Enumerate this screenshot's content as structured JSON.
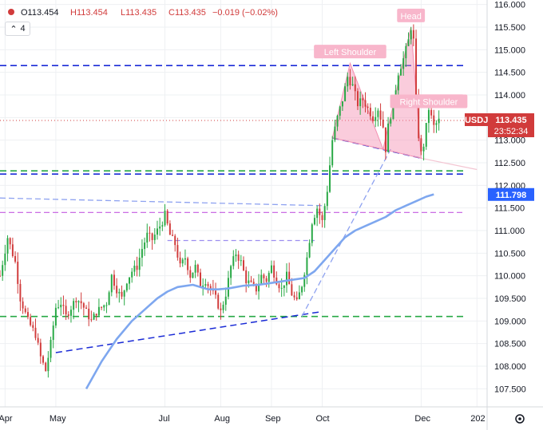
{
  "chart_data": {
    "type": "candlestick",
    "symbol": "USDJPY",
    "header": {
      "open": "O113.454",
      "high": "H113.454",
      "low": "L113.435",
      "close": "C113.435",
      "change": "−0.019 (−0.02%)"
    },
    "interval_label": "4",
    "last_price": "113.435",
    "countdown": "23:52:34",
    "ma_value": "111.798",
    "ylim": [
      107.1,
      116.1
    ],
    "y_ticks": [
      "116.000",
      "115.500",
      "115.000",
      "114.500",
      "114.000",
      "113.500",
      "113.000",
      "112.500",
      "112.000",
      "111.500",
      "111.000",
      "110.500",
      "110.000",
      "109.500",
      "109.000",
      "108.500",
      "108.000",
      "107.500"
    ],
    "x_ticks": [
      {
        "label": "Apr",
        "t": 2
      },
      {
        "label": "May",
        "t": 22
      },
      {
        "label": "Jul",
        "t": 65
      },
      {
        "label": "Aug",
        "t": 87
      },
      {
        "label": "Sep",
        "t": 107
      },
      {
        "label": "Oct",
        "t": 127
      },
      {
        "label": "Dec",
        "t": 166
      },
      {
        "label": "202",
        "t": 188
      }
    ],
    "waypoints": [
      [
        0,
        110.0
      ],
      [
        3,
        110.85
      ],
      [
        6,
        110.3
      ],
      [
        8,
        109.5
      ],
      [
        11,
        109.0
      ],
      [
        14,
        108.7
      ],
      [
        16,
        108.2
      ],
      [
        18,
        107.9
      ],
      [
        20,
        108.5
      ],
      [
        22,
        109.3
      ],
      [
        24,
        109.4
      ],
      [
        26,
        109.1
      ],
      [
        28,
        109.3
      ],
      [
        30,
        109.5
      ],
      [
        32,
        109.4
      ],
      [
        34,
        109.2
      ],
      [
        36,
        109.0
      ],
      [
        38,
        109.2
      ],
      [
        40,
        109.3
      ],
      [
        42,
        109.4
      ],
      [
        44,
        110.0
      ],
      [
        46,
        109.7
      ],
      [
        48,
        109.5
      ],
      [
        50,
        109.9
      ],
      [
        52,
        110.1
      ],
      [
        54,
        110.2
      ],
      [
        56,
        110.6
      ],
      [
        58,
        110.9
      ],
      [
        60,
        110.8
      ],
      [
        62,
        111.0
      ],
      [
        64,
        111.2
      ],
      [
        65,
        111.35
      ],
      [
        67,
        110.9
      ],
      [
        69,
        110.7
      ],
      [
        71,
        110.2
      ],
      [
        73,
        110.4
      ],
      [
        75,
        110.0
      ],
      [
        77,
        110.2
      ],
      [
        79,
        109.8
      ],
      [
        81,
        109.9
      ],
      [
        83,
        109.7
      ],
      [
        85,
        109.5
      ],
      [
        87,
        109.2
      ],
      [
        89,
        109.6
      ],
      [
        91,
        110.2
      ],
      [
        93,
        110.5
      ],
      [
        95,
        110.3
      ],
      [
        97,
        109.9
      ],
      [
        99,
        109.8
      ],
      [
        101,
        109.7
      ],
      [
        103,
        110.0
      ],
      [
        105,
        109.9
      ],
      [
        107,
        110.2
      ],
      [
        109,
        109.9
      ],
      [
        111,
        109.7
      ],
      [
        113,
        110.0
      ],
      [
        115,
        109.6
      ],
      [
        117,
        109.4
      ],
      [
        119,
        109.8
      ],
      [
        121,
        110.4
      ],
      [
        123,
        111.2
      ],
      [
        125,
        111.5
      ],
      [
        127,
        111.2
      ],
      [
        129,
        111.9
      ],
      [
        131,
        113.0
      ],
      [
        133,
        113.5
      ],
      [
        135,
        113.9
      ],
      [
        137,
        114.4
      ],
      [
        139,
        114.2
      ],
      [
        141,
        113.8
      ],
      [
        143,
        113.9
      ],
      [
        145,
        113.7
      ],
      [
        147,
        113.5
      ],
      [
        149,
        113.7
      ],
      [
        151,
        113.3
      ],
      [
        152,
        112.8
      ],
      [
        153,
        113.3
      ],
      [
        155,
        113.8
      ],
      [
        157,
        114.5
      ],
      [
        159,
        114.8
      ],
      [
        161,
        115.2
      ],
      [
        162,
        115.5
      ],
      [
        163,
        115.2
      ],
      [
        164,
        113.9
      ],
      [
        165,
        113.1
      ],
      [
        166,
        112.7
      ],
      [
        167,
        112.9
      ],
      [
        168,
        113.3
      ],
      [
        169,
        113.7
      ],
      [
        171,
        113.3
      ],
      [
        173,
        113.43
      ]
    ],
    "ma_waypoints": [
      [
        34,
        107.5
      ],
      [
        40,
        108.1
      ],
      [
        46,
        108.6
      ],
      [
        52,
        109.0
      ],
      [
        58,
        109.3
      ],
      [
        62,
        109.5
      ],
      [
        66,
        109.65
      ],
      [
        70,
        109.75
      ],
      [
        76,
        109.8
      ],
      [
        82,
        109.7
      ],
      [
        86,
        109.7
      ],
      [
        90,
        109.72
      ],
      [
        96,
        109.78
      ],
      [
        102,
        109.8
      ],
      [
        108,
        109.85
      ],
      [
        114,
        109.9
      ],
      [
        120,
        109.95
      ],
      [
        124,
        110.1
      ],
      [
        128,
        110.35
      ],
      [
        132,
        110.6
      ],
      [
        136,
        110.85
      ],
      [
        140,
        111.0
      ],
      [
        144,
        111.1
      ],
      [
        148,
        111.2
      ],
      [
        152,
        111.3
      ],
      [
        156,
        111.45
      ],
      [
        160,
        111.55
      ],
      [
        164,
        111.65
      ],
      [
        168,
        111.75
      ],
      [
        171,
        111.8
      ]
    ],
    "levels": {
      "blue_dashed": [
        114.65,
        112.25
      ],
      "green_dashed": [
        112.32,
        109.1
      ],
      "purple_dashed": [
        111.4
      ],
      "red_dotted": 113.435,
      "pink_line": 114.0
    },
    "trendlines": [
      {
        "kind": "dashed-blue",
        "from": [
          22,
          108.3
        ],
        "to": [
          126,
          109.2
        ]
      },
      {
        "kind": "dashed-lightblue",
        "from": [
          0,
          111.72
        ],
        "to": [
          128,
          111.55
        ]
      },
      {
        "kind": "dashed-violet",
        "from": [
          66,
          110.78
        ],
        "to": [
          124,
          110.78
        ]
      },
      {
        "kind": "dashed-violet",
        "from": [
          66,
          111.65
        ],
        "to": [
          66,
          111.65
        ]
      },
      {
        "kind": "dashed-lightblue",
        "from": [
          119,
          109.1
        ],
        "to": [
          154,
          112.8
        ]
      },
      {
        "kind": "dashed-blue",
        "from": [
          131,
          113.05
        ],
        "to": [
          166,
          112.6
        ]
      },
      {
        "kind": "solid-lightpink",
        "from": [
          166,
          112.6
        ],
        "to": [
          188,
          112.35
        ]
      }
    ],
    "pattern": {
      "left_shoulder": [
        [
          131,
          113.05
        ],
        [
          138,
          114.7
        ],
        [
          151,
          112.8
        ]
      ],
      "head": [
        [
          151,
          112.8
        ],
        [
          162,
          115.5
        ],
        [
          166,
          112.6
        ]
      ],
      "right_shoulder_line": [
        [
          164,
          114.0
        ],
        [
          173,
          114.0
        ]
      ]
    },
    "annotations": [
      {
        "label": "Left Shoulder",
        "t": 138,
        "price": 114.95
      },
      {
        "label": "Head",
        "t": 162,
        "price": 115.75
      },
      {
        "label": "Right Shoulder",
        "t": 169,
        "price": 113.85
      }
    ]
  }
}
